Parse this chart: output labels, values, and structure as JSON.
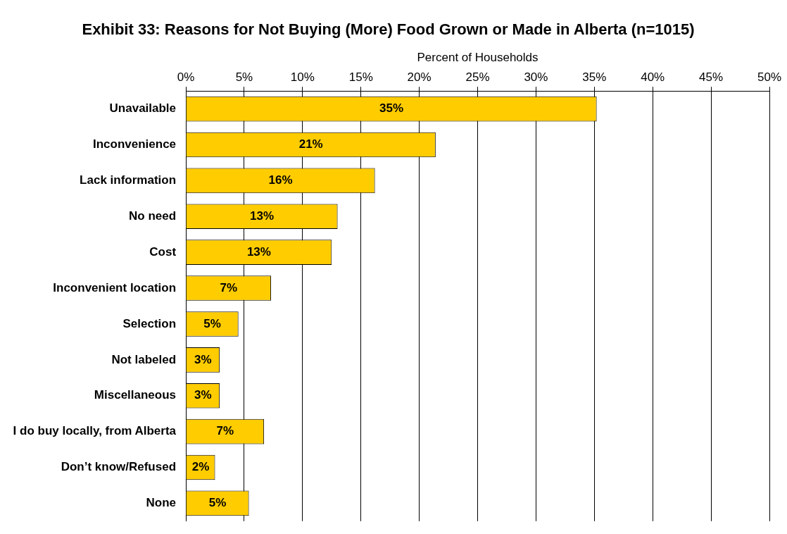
{
  "chart_data": {
    "type": "bar",
    "orientation": "horizontal",
    "title": "Exhibit 33: Reasons for Not Buying (More) Food Grown or Made in Alberta (n=1015)",
    "xlabel": "Percent of Households",
    "categories": [
      "Unavailable",
      "Inconvenience",
      "Lack information",
      "No need",
      "Cost",
      "Inconvenient location",
      "Selection",
      "Not labeled",
      "Miscellaneous",
      "I do buy locally, from Alberta",
      "Don’t know/Refused",
      "None"
    ],
    "values": [
      35.2,
      21.4,
      16.2,
      13.0,
      12.5,
      7.3,
      4.5,
      2.9,
      2.9,
      6.7,
      2.5,
      5.4
    ],
    "value_labels": [
      "35%",
      "21%",
      "16%",
      "13%",
      "13%",
      "7%",
      "5%",
      "3%",
      "3%",
      "7%",
      "2%",
      "5%"
    ],
    "color": "#ffcc00",
    "xlim": [
      0,
      50
    ],
    "xticks": [
      {
        "value": 0,
        "label": "0%"
      },
      {
        "value": 5,
        "label": "5%"
      },
      {
        "value": 10,
        "label": "10%"
      },
      {
        "value": 15,
        "label": "15%"
      },
      {
        "value": 20,
        "label": "20%"
      },
      {
        "value": 25,
        "label": "25%"
      },
      {
        "value": 30,
        "label": "30%"
      },
      {
        "value": 35,
        "label": "35%"
      },
      {
        "value": 40,
        "label": "40%"
      },
      {
        "value": 45,
        "label": "45%"
      },
      {
        "value": 50,
        "label": "50%"
      }
    ],
    "grid": "x",
    "legend": false
  }
}
